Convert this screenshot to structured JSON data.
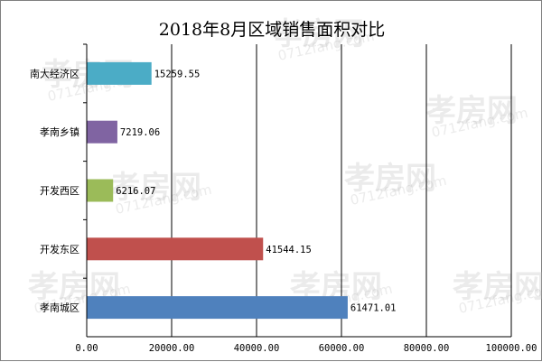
{
  "chart_data": {
    "type": "bar",
    "orientation": "horizontal",
    "title": "2018年8月区域销售面积对比",
    "categories": [
      "南大经济区",
      "孝南乡镇",
      "开发西区",
      "开发东区",
      "孝南城区"
    ],
    "values": [
      15259.55,
      7219.06,
      6216.07,
      41544.15,
      61471.01
    ],
    "value_labels": [
      "15259.55",
      "7219.06",
      "6216.07",
      "41544.15",
      "61471.01"
    ],
    "bar_colors": [
      "#4bacc6",
      "#8064a2",
      "#9bbb59",
      "#c0504d",
      "#4f81bd"
    ],
    "xlim": [
      0,
      100000
    ],
    "x_ticks": [
      0,
      20000,
      40000,
      60000,
      80000,
      100000
    ],
    "x_tick_labels": [
      "0.00",
      "20000.00",
      "40000.00",
      "60000.00",
      "80000.00",
      "100000.00"
    ],
    "xlabel": "",
    "ylabel": "",
    "grid": "vertical",
    "legend": "none"
  },
  "watermark": {
    "brand": "孝房网",
    "url": "0712fang.com"
  }
}
